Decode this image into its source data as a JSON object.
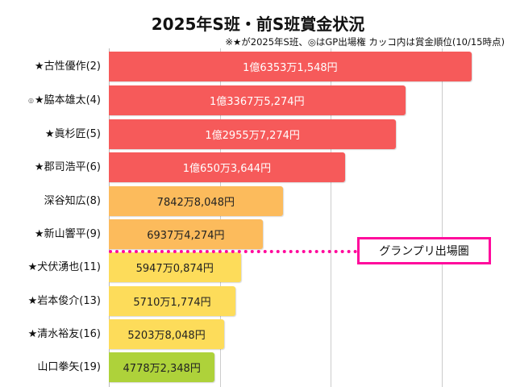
{
  "chart_data": {
    "type": "bar",
    "orientation": "horizontal",
    "title": "2025年S班・前S班賞金状況",
    "subtitle": "※★が2025年S班、◎はGP出場権 カッコ内は賞金順位(10/15時点)",
    "xlabel": "",
    "ylabel": "",
    "xlim": [
      0,
      170000000
    ],
    "grid_step": 50000000,
    "grid": true,
    "categories": [
      "★古性優作(2)",
      "★脇本雄太(4)",
      "★眞杉匠(5)",
      "★郡司浩平(6)",
      "深谷知広(8)",
      "★新山響平(9)",
      "★犬伏湧也(11)",
      "★岩本俊介(13)",
      "★清水裕友(16)",
      "山口拳矢(19)"
    ],
    "marks": [
      "",
      "◎",
      "",
      "",
      "",
      "",
      "",
      "",
      "",
      ""
    ],
    "values": [
      163531548,
      133675274,
      129557274,
      106503644,
      78428048,
      69374274,
      59470874,
      57101774,
      52038048,
      47782348
    ],
    "value_labels": [
      "1億6353万1,548円",
      "1億3367万5,274円",
      "1億2955万7,274円",
      "1億650万3,644円",
      "7842万8,048円",
      "6937万4,274円",
      "5947万0,874円",
      "5710万1,774円",
      "5203万8,048円",
      "4778万2,348円"
    ],
    "colors": [
      "#f65a5a",
      "#f65a5a",
      "#f65a5a",
      "#f65a5a",
      "#fcbb5c",
      "#fcbb5c",
      "#fddc5a",
      "#fddc5a",
      "#fddc5a",
      "#aed23a"
    ],
    "annotation": {
      "text": "グランプリ出場圏",
      "after_index": 5,
      "color": "#ff0a9c"
    }
  }
}
